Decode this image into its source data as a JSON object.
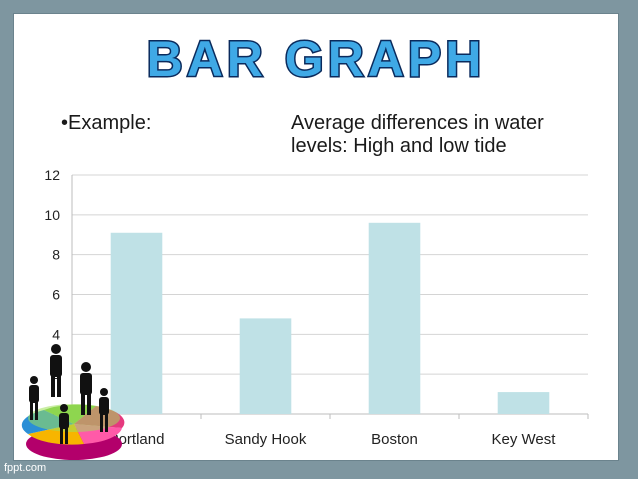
{
  "slide": {
    "title": "BAR GRAPH",
    "bullet": "•Example:",
    "subtitle_lines": [
      "Average differences in water",
      "levels: High and low tide"
    ],
    "watermark": "fppt.com",
    "clipart": "businesspeople-on-pie-chart-icon"
  },
  "chart_data": {
    "type": "bar",
    "categories": [
      "Portland",
      "Sandy Hook",
      "Boston",
      "Key West"
    ],
    "series": [
      {
        "values": [
          9.1,
          4.8,
          9.6,
          1.1
        ]
      }
    ],
    "ylim": [
      0,
      12
    ],
    "yticks": [
      "0",
      "2",
      "4",
      "6",
      "8",
      "10",
      "12"
    ],
    "grid": true,
    "bar_color": "#bfe1e6"
  },
  "colors": {
    "frame": "#7e96a0",
    "title_fill": "#3fa9e6",
    "title_outline": "#0a2a5c"
  }
}
